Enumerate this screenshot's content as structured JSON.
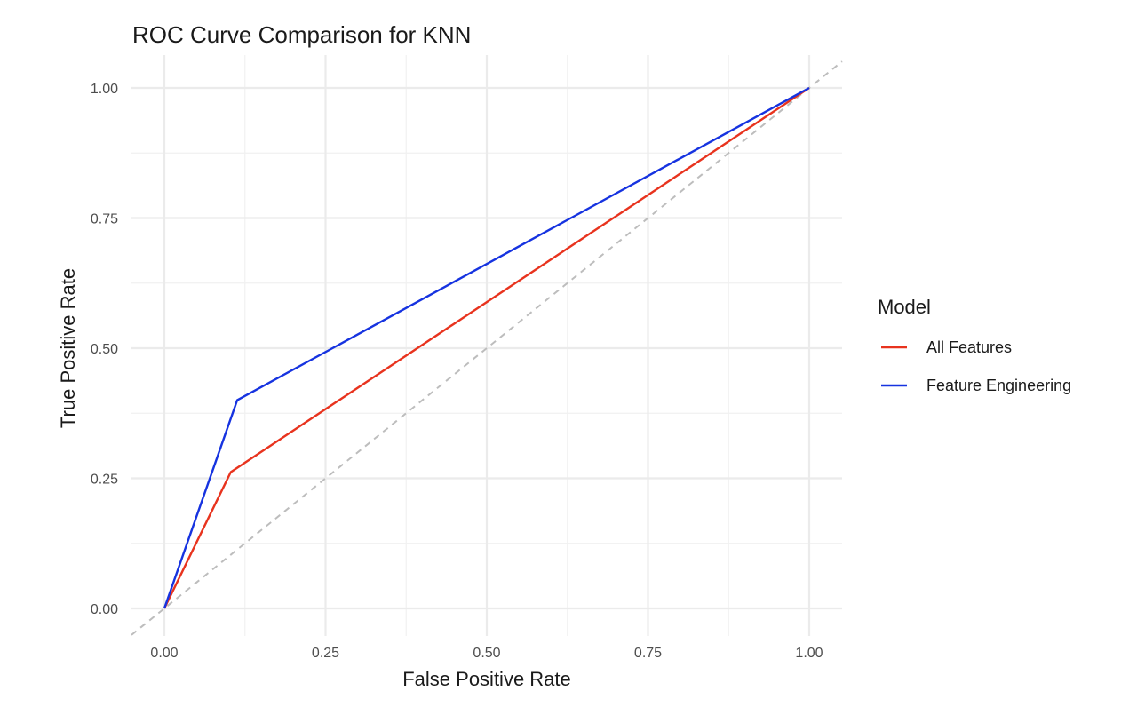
{
  "chart_data": {
    "type": "line",
    "title": "ROC Curve Comparison for KNN",
    "xlabel": "False Positive Rate",
    "ylabel": "True Positive Rate",
    "xlim": [
      0,
      1
    ],
    "ylim": [
      0,
      1
    ],
    "x_ticks": [
      0,
      0.25,
      0.5,
      0.75,
      1
    ],
    "x_tick_labels": [
      "0.00",
      "0.25",
      "0.50",
      "0.75",
      "1.00"
    ],
    "y_ticks": [
      0,
      0.25,
      0.5,
      0.75,
      1
    ],
    "y_tick_labels": [
      "0.00",
      "0.25",
      "0.50",
      "0.75",
      "1.00"
    ],
    "grid": true,
    "legend": {
      "title": "Model",
      "placement": "right"
    },
    "series": [
      {
        "name": "All Features",
        "color": "#e8331e",
        "x": [
          0,
          0.103,
          1
        ],
        "y": [
          0,
          0.262,
          1
        ]
      },
      {
        "name": "Feature Engineering",
        "color": "#1633e0",
        "x": [
          0,
          0.113,
          1
        ],
        "y": [
          0,
          0.4,
          1
        ]
      }
    ],
    "reference_line": {
      "style": "dashed",
      "color": "#bdbdbd",
      "x": [
        0,
        1
      ],
      "y": [
        0,
        1
      ]
    }
  }
}
